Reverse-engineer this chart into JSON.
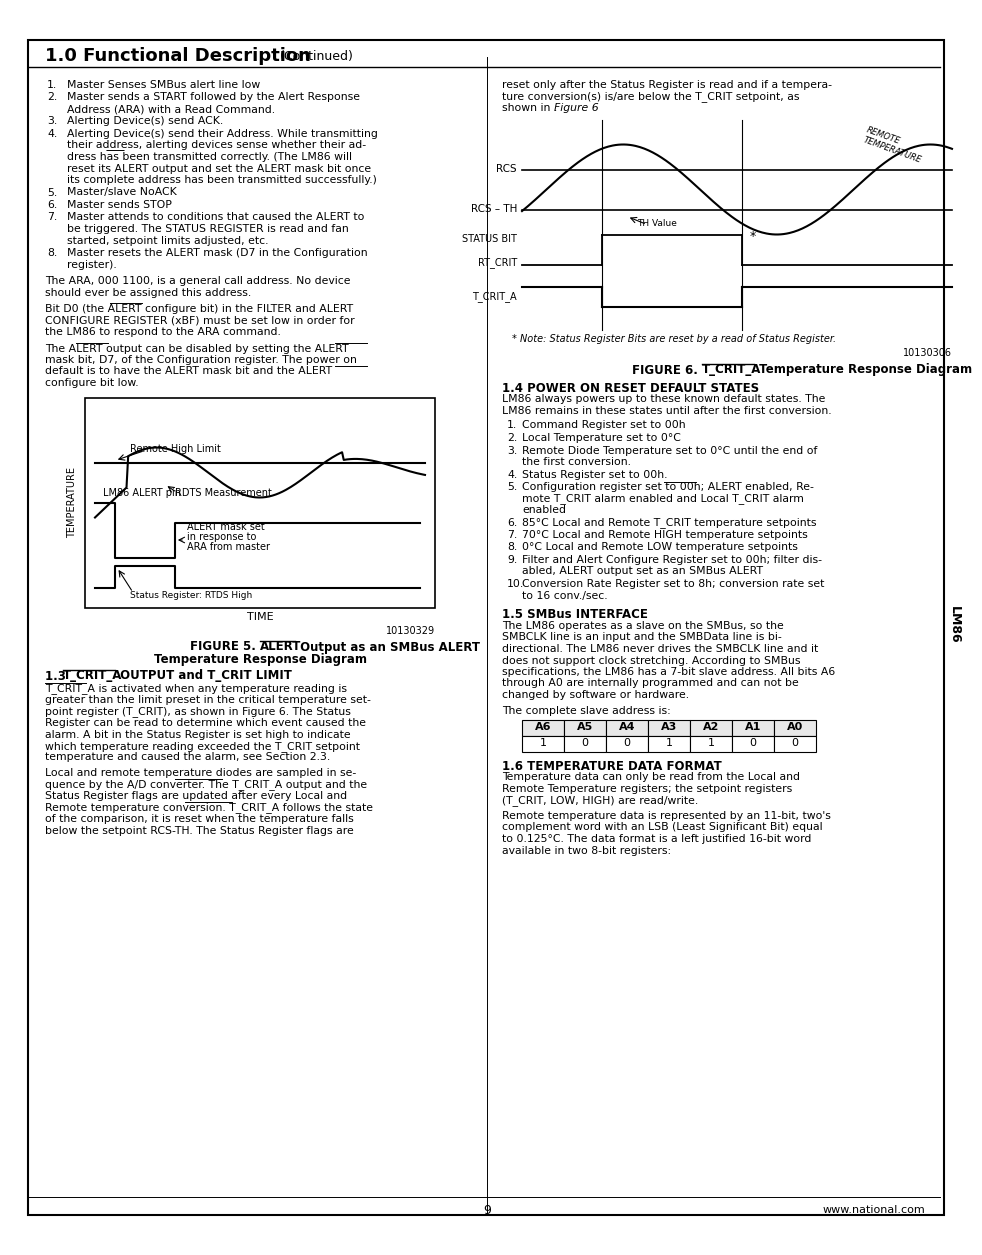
{
  "page_num": "9",
  "website": "www.national.com",
  "chip_name": "LM86",
  "title": "1.0 Functional Description",
  "title_continued": "(Continued)",
  "border_color": "#000000",
  "bg_color": "#ffffff",
  "text_color": "#000000",
  "right_col_intro": "reset only after the Status Register is read and if a temperature conversion(s) is/are below the T_CRIT setpoint, as shown in . Figure 6",
  "left_col_items": [
    "Master Senses SMBus alert line low",
    "Master sends a START followed by the Alert Response Address (ARA) with a Read Command.",
    "Alerting Device(s) send ACK.",
    "Alerting Device(s) send their Address. While transmitting their address, alerting devices sense whether their address has been transmitted correctly. (The LM86 will reset its ALERT output and set the ALERT mask bit once its complete address has been transmitted successfully.)",
    "Master/slave NoACK",
    "Master sends STOP",
    "Master attends to conditions that caused the ALERT to be triggered. The STATUS REGISTER is read and fan started, setpoint limits adjusted, etc.",
    "Master resets the ALERT mask (D7 in the Configuration register)."
  ],
  "para1": "The ARA, 000 1100, is a general call address. No device should ever be assigned this address.",
  "para2_line1": "Bit D0 (the ALERT configure bit) in the FILTER and ALERT",
  "para2_line2": "CONFIGURE REGISTER (xBF) must be set low in order for",
  "para2_line3": "the LM86 to respond to the ARA command.",
  "para2": "Bit D0 (the ALERT configure bit) in the FILTER and ALERT CONFIGURE REGISTER (xBF) must be set low in order for the LM86 to respond to the ARA command.",
  "para3": "The ALERT output can be disabled by setting the ALERT mask bit, D7, of the Configuration register. The power on default is to have the ALERT mask bit and the ALERT configure bit low.",
  "fig5_caption_line1": "FIGURE 5. ALERT Output as an SMBus ALERT",
  "fig5_caption_line2": "Temperature Response Diagram",
  "fig5_code": "10130329",
  "sec13_heading": "1.3 T_CRIT_A OUTPUT and T_CRIT LIMIT",
  "sec13_para1": "T_CRIT_A is activated when any temperature reading is greater than the limit preset in the critical temperature setpoint register (T_CRIT), as shown in Figure 6. The Status Register can be read to determine which event caused the alarm. A bit in the Status Register is set high to indicate which temperature reading exceeded the T_CRIT setpoint temperature and caused the alarm, see Section 2.3.",
  "sec13_para2": "Local and remote temperature diodes are sampled in sequence by the A/D converter. The T_CRIT_A output and the Status Register flags are updated after every Local and Remote temperature conversion. T_CRIT_A follows the state of the comparison, it is reset when the temperature falls below the setpoint RCS-TH. The Status Register flags are",
  "fig6_code": "10130306",
  "fig6_note": "* Note: Status Register Bits are reset by a read of Status Register.",
  "fig6_caption": "FIGURE 6. T_CRIT_A Temperature Response Diagram",
  "sec14_heading": "1.4 POWER ON RESET DEFAULT STATES",
  "sec14_intro": "LM86 always powers up to these known default states. The LM86 remains in these states until after the first conversion.",
  "sec14_items": [
    "Command Register set to 00h",
    "Local Temperature set to 0°C",
    "Remote Diode Temperature set to 0°C until the end of the first conversion.",
    "Status Register set to 00h.",
    "Configuration register set to 00h; ALERT enabled, Remote T_CRIT alarm enabled and Local T_CRIT alarm enabled",
    "85°C Local and Remote T_CRIT temperature setpoints",
    "70°C Local and Remote HIGH temperature setpoints",
    "0°C Local and Remote LOW temperature setpoints",
    "Filter and Alert Configure Register set to 00h; filter disabled, ALERT output set as an SMBus ALERT",
    "Conversion Rate Register set to 8h; conversion rate set to 16 conv./sec."
  ],
  "sec15_heading": "1.5 SMBus INTERFACE",
  "sec15_para": "The LM86 operates as a slave on the SMBus, so the SMBCLK line is an input and the SMBData line is bidirectional. The LM86 never drives the SMBCLK line and it does not support clock stretching. According to SMBus specifications, the LM86 has a 7-bit slave address. All bits A6 through A0 are internally programmed and can not be changed by software or hardware.",
  "sec15_para2": "The complete slave address is:",
  "slave_table_headers": [
    "A6",
    "A5",
    "A4",
    "A3",
    "A2",
    "A1",
    "A0"
  ],
  "slave_table_values": [
    "1",
    "0",
    "0",
    "1",
    "1",
    "0",
    "0"
  ],
  "sec16_heading": "1.6 TEMPERATURE DATA FORMAT",
  "sec16_para1": "Temperature data can only be read from the Local and Remote Temperature registers; the setpoint registers (T_CRIT, LOW, HIGH) are read/write.",
  "sec16_para2": "Remote temperature data is represented by an 11-bit, two's complement word with an LSB (Least Significant Bit) equal to 0.125°C. The data format is a left justified 16-bit word available in two 8-bit registers:"
}
